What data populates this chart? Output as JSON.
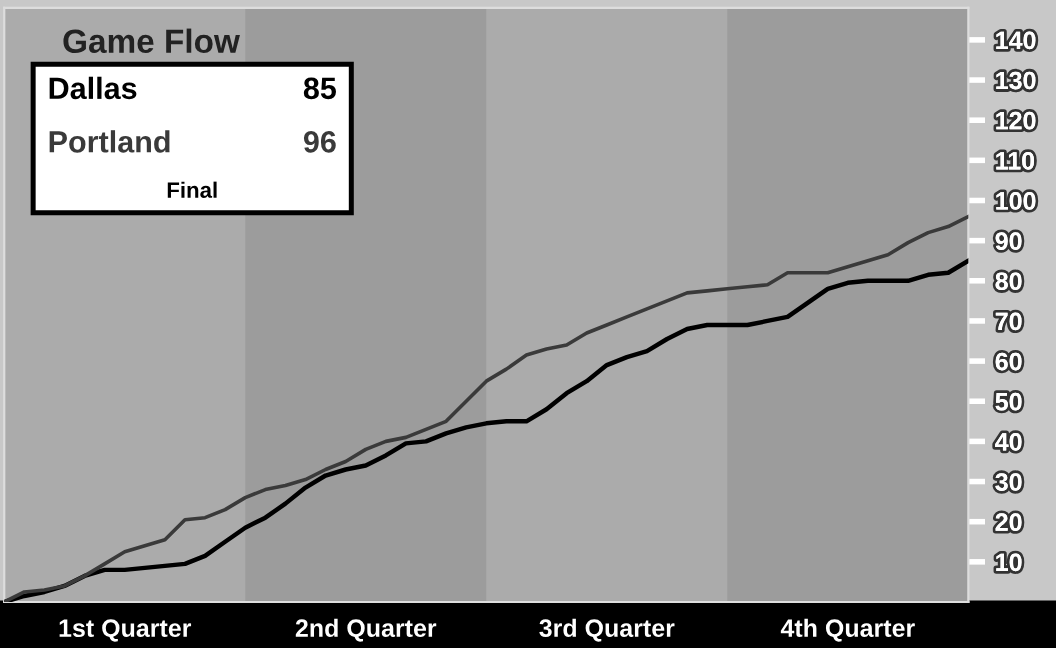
{
  "chart_data": {
    "type": "line",
    "title": "Game Flow",
    "categories": [
      null,
      null,
      null,
      null,
      null,
      null,
      "1st Quarter",
      null,
      null,
      null,
      null,
      null,
      null,
      null,
      null,
      null,
      null,
      null,
      "2nd Quarter",
      null,
      null,
      null,
      null,
      null,
      null,
      null,
      null,
      null,
      null,
      null,
      "3rd Quarter",
      null,
      null,
      null,
      null,
      null,
      null,
      null,
      null,
      null,
      null,
      null,
      "4th Quarter",
      null,
      null,
      null,
      null,
      null,
      null
    ],
    "ylim": [
      0,
      148
    ],
    "yticks": [
      10,
      20,
      30,
      40,
      50,
      60,
      70,
      80,
      90,
      100,
      110,
      120,
      130,
      140
    ],
    "series": [
      {
        "name": "Dallas",
        "color": "#000000",
        "values": [
          0,
          1.5,
          2.5,
          4,
          6.5,
          8,
          8,
          8.5,
          9,
          9.5,
          11.5,
          15,
          18.5,
          21,
          24.5,
          28.5,
          31.5,
          33,
          34,
          36.5,
          39.5,
          40,
          42,
          43.5,
          44.5,
          45,
          45,
          48,
          52,
          55,
          59,
          61,
          62.5,
          65.5,
          68,
          69,
          69,
          69,
          70,
          71,
          74.5,
          78,
          79.5,
          80,
          80,
          80,
          81.5,
          82,
          85
        ]
      },
      {
        "name": "Portland",
        "color": "#3a3a3a",
        "values": [
          0,
          2.5,
          3,
          4,
          6.5,
          9.5,
          12.5,
          14,
          15.5,
          20.5,
          21,
          23,
          26,
          28,
          29,
          30.5,
          33,
          35,
          38,
          40,
          41,
          43,
          45,
          50,
          55,
          58,
          61.5,
          63,
          64,
          67,
          69,
          71,
          73,
          75,
          77,
          77.5,
          78,
          78.5,
          79,
          82,
          82,
          82,
          83.5,
          85,
          86.5,
          89.5,
          92,
          93.5,
          96
        ]
      }
    ],
    "annotations": [
      "85",
      "96",
      "Final"
    ],
    "line_style": "solid",
    "marker": "none",
    "grid": false,
    "legend": false
  }
}
